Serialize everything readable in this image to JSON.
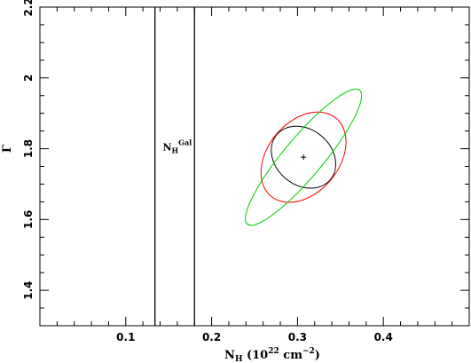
{
  "chart_data": {
    "type": "line",
    "title": "",
    "xlabel": {
      "main": "N",
      "sub": "H",
      "rest": " (10",
      "sup": "22",
      "rest2": " cm",
      "sup2": "−2",
      "end": ")"
    },
    "ylabel": "Γ",
    "xlim": [
      0.0,
      0.5
    ],
    "ylim": [
      1.3,
      2.2
    ],
    "x_ticks": [
      0.1,
      0.2,
      0.3,
      0.4
    ],
    "x_tick_labels": [
      "0.1",
      "0.2",
      "0.3",
      "0.4"
    ],
    "y_ticks": [
      1.4,
      1.6,
      1.8,
      2.0,
      2.2
    ],
    "y_tick_labels": [
      "1.4",
      "1.6",
      "1.8",
      "2",
      "2.2"
    ],
    "vertical_lines": [
      0.134,
      0.18
    ],
    "annotation": {
      "main": "N",
      "sub": "H",
      "sup": "Gal",
      "x": 0.141,
      "y": 1.8
    },
    "best_fit": {
      "x": 0.307,
      "y": 1.776
    },
    "contours": [
      {
        "color": "#000000",
        "center": [
          0.307,
          1.776
        ],
        "x_extent": [
          0.27,
          0.345
        ],
        "y_extent": [
          1.69,
          1.865
        ]
      },
      {
        "color": "#ff0000",
        "center": [
          0.307,
          1.776
        ],
        "x_extent": [
          0.258,
          0.357
        ],
        "y_extent": [
          1.65,
          1.905
        ]
      },
      {
        "color": "#00cc00",
        "center": [
          0.307,
          1.776
        ],
        "x_extent": [
          0.243,
          0.373
        ],
        "y_extent": [
          1.58,
          1.975
        ]
      }
    ],
    "grid": false,
    "legend": "none"
  }
}
